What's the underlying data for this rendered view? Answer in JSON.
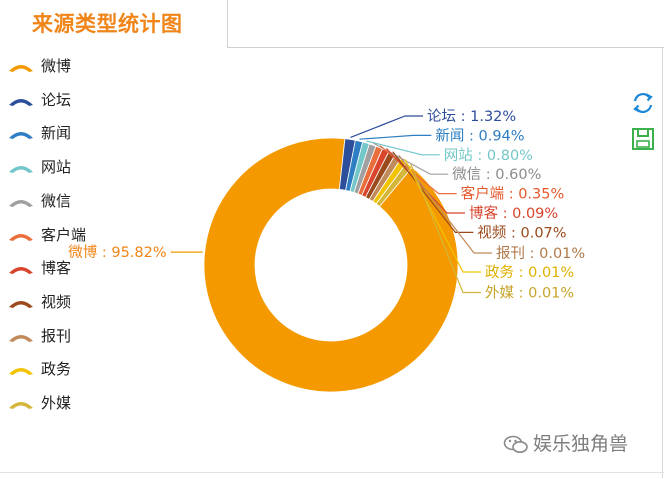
{
  "header": {
    "title": "来源类型统计图"
  },
  "legend": [
    {
      "label": "微博",
      "color": "#f49a00"
    },
    {
      "label": "论坛",
      "color": "#2d4e9b"
    },
    {
      "label": "新闻",
      "color": "#2d7ec2"
    },
    {
      "label": "网站",
      "color": "#74c7c9"
    },
    {
      "label": "微信",
      "color": "#a0a0a0"
    },
    {
      "label": "客户端",
      "color": "#ea6e3b"
    },
    {
      "label": "博客",
      "color": "#d8442c"
    },
    {
      "label": "视频",
      "color": "#9a4a1c"
    },
    {
      "label": "报刊",
      "color": "#c08a5a"
    },
    {
      "label": "政务",
      "color": "#f2c300"
    },
    {
      "label": "外媒",
      "color": "#d4b63a"
    }
  ],
  "toolbox": {
    "refresh_icon": "refresh-icon",
    "save_icon": "save-icon"
  },
  "watermark": {
    "text": "娱乐独角兽"
  },
  "chart_data": {
    "type": "pie",
    "subtype": "donut",
    "title": "来源类型统计图",
    "slices": [
      {
        "name": "微博",
        "value": 95.82,
        "label": "微博 : 95.82%",
        "color": "#f49a00",
        "label_color": "#f08519"
      },
      {
        "name": "论坛",
        "value": 1.32,
        "label": "论坛 : 1.32%",
        "color": "#2d4e9b",
        "label_color": "#2d4e9b"
      },
      {
        "name": "新闻",
        "value": 0.94,
        "label": "新闻 : 0.94%",
        "color": "#2d7ec2",
        "label_color": "#2d7ec2"
      },
      {
        "name": "网站",
        "value": 0.8,
        "label": "网站 : 0.80%",
        "color": "#74c7c9",
        "label_color": "#74c7c9"
      },
      {
        "name": "微信",
        "value": 0.6,
        "label": "微信 : 0.60%",
        "color": "#a0a0a0",
        "label_color": "#8c8c8c"
      },
      {
        "name": "客户端",
        "value": 0.35,
        "label": "客户端 : 0.35%",
        "color": "#ea6e3b",
        "label_color": "#e4582b"
      },
      {
        "name": "博客",
        "value": 0.09,
        "label": "博客 : 0.09%",
        "color": "#d8442c",
        "label_color": "#d8442c"
      },
      {
        "name": "视频",
        "value": 0.07,
        "label": "视频 : 0.07%",
        "color": "#9a4a1c",
        "label_color": "#9a4a1c"
      },
      {
        "name": "报刊",
        "value": 0.01,
        "label": "报刊 : 0.01%",
        "color": "#c08a5a",
        "label_color": "#b07a4a"
      },
      {
        "name": "政务",
        "value": 0.01,
        "label": "政务 : 0.01%",
        "color": "#f2c300",
        "label_color": "#e0b000"
      },
      {
        "name": "外媒",
        "value": 0.01,
        "label": "外媒 : 0.01%",
        "color": "#d4b63a",
        "label_color": "#c9a52a"
      }
    ]
  }
}
